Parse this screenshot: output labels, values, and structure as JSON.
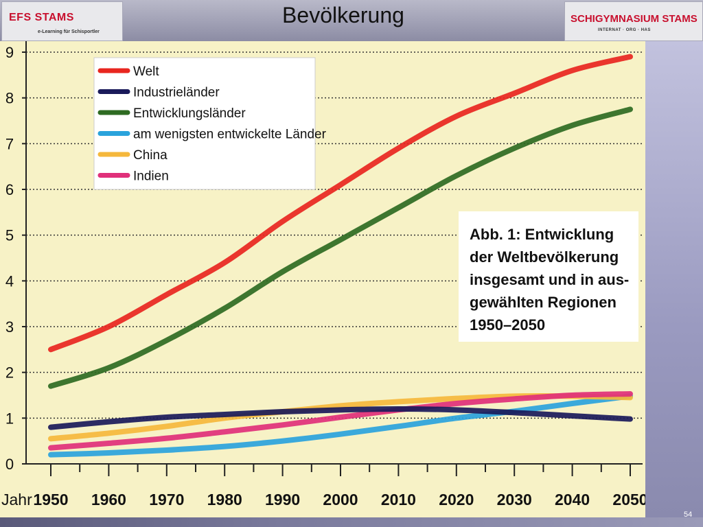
{
  "header": {
    "title": "Bevölkerung",
    "logo_left": {
      "name": "EFS STAMS",
      "subtitle": "e-Learning für Schisportler"
    },
    "logo_right": {
      "name": "SCHIGYMNASIUM STAMS",
      "subtitle": "INTERNAT · ORG · HAS"
    }
  },
  "slide_number": "54",
  "colors": {
    "background": "#f7f2c6",
    "welt": "#e8261f",
    "industrielaender": "#1a1a5a",
    "entwicklungslaender": "#2e6b22",
    "am_wenigsten": "#2aa3dc",
    "china": "#f5b83c",
    "indien": "#e0307a"
  },
  "chart_data": {
    "type": "line",
    "title": "",
    "annotation": [
      "Abb. 1: Entwicklung",
      "der Weltbevölkerung",
      "insgesamt und in aus-",
      "gewählten Regionen",
      "1950–2050"
    ],
    "xlabel": "Jahr",
    "ylabel": "",
    "x": [
      1950,
      1960,
      1970,
      1980,
      1990,
      2000,
      2010,
      2020,
      2030,
      2040,
      2050
    ],
    "xlim": [
      1950,
      2050
    ],
    "ylim": [
      0,
      9
    ],
    "yticks": [
      0,
      1,
      2,
      3,
      4,
      5,
      6,
      7,
      8,
      9
    ],
    "xticklabels": [
      "1950",
      "1960",
      "1970",
      "1980",
      "1990",
      "2000",
      "2010",
      "2020",
      "2030",
      "2040",
      "2050"
    ],
    "grid": "horizontal dotted",
    "legend_position": "top-left",
    "series": [
      {
        "name": "Welt",
        "color": "#e8261f",
        "values": [
          2.5,
          3.0,
          3.7,
          4.4,
          5.3,
          6.1,
          6.9,
          7.6,
          8.1,
          8.6,
          8.9
        ]
      },
      {
        "name": "Industrieländer",
        "color": "#1a1a5a",
        "values": [
          0.8,
          0.92,
          1.02,
          1.08,
          1.14,
          1.18,
          1.2,
          1.18,
          1.12,
          1.05,
          0.98
        ]
      },
      {
        "name": "Entwicklungsländer",
        "color": "#2e6b22",
        "values": [
          1.7,
          2.1,
          2.7,
          3.4,
          4.2,
          4.9,
          5.6,
          6.3,
          6.9,
          7.4,
          7.75
        ]
      },
      {
        "name": "am wenigsten entwickelte Länder",
        "color": "#2aa3dc",
        "values": [
          0.2,
          0.24,
          0.3,
          0.38,
          0.5,
          0.65,
          0.82,
          1.0,
          1.15,
          1.32,
          1.48
        ]
      },
      {
        "name": "China",
        "color": "#f5b83c",
        "values": [
          0.55,
          0.67,
          0.82,
          1.0,
          1.14,
          1.27,
          1.36,
          1.43,
          1.48,
          1.48,
          1.45
        ]
      },
      {
        "name": "Indien",
        "color": "#e0307a",
        "values": [
          0.35,
          0.45,
          0.56,
          0.7,
          0.85,
          1.02,
          1.18,
          1.32,
          1.42,
          1.5,
          1.53
        ]
      }
    ]
  }
}
